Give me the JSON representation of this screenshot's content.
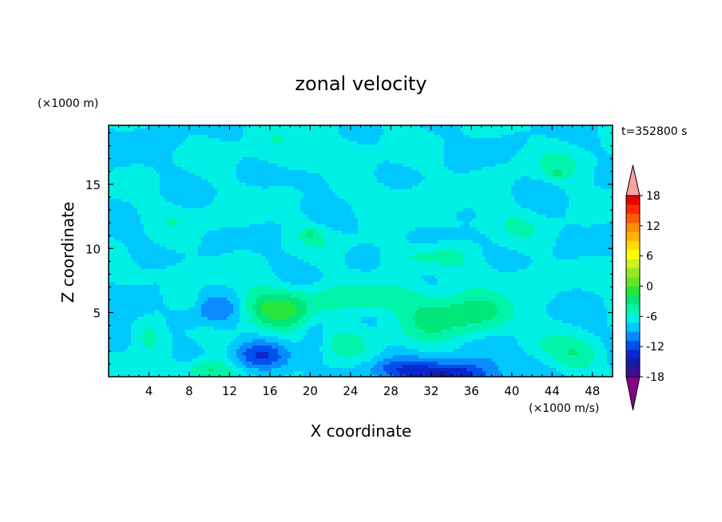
{
  "chart_data": {
    "type": "heatmap",
    "title": "zonal velocity",
    "xlabel": "X coordinate",
    "ylabel": "Z coordinate",
    "x_unit": "(×1000 m/s)",
    "y_unit": "(×1000 m)",
    "time_label": "t=352800 s",
    "xlim": [
      0,
      50
    ],
    "ylim": [
      0,
      19.6
    ],
    "xticks": [
      "4",
      "8",
      "12",
      "16",
      "20",
      "24",
      "28",
      "32",
      "36",
      "40",
      "44",
      "48"
    ],
    "yticks": [
      "5",
      "10",
      "15"
    ],
    "colorbar": {
      "range": [
        -21,
        21
      ],
      "step": 3,
      "ticks": [
        "18",
        "12",
        "6",
        "0",
        "-6",
        "-12",
        "-18"
      ],
      "colors": [
        "#8b008b",
        "#3c0e96",
        "#1a1aa0",
        "#0a28cd",
        "#0050f0",
        "#0a8cff",
        "#00c8ff",
        "#00f0e6",
        "#00f5aa",
        "#00e678",
        "#28e63c",
        "#64e61e",
        "#9be61e",
        "#d2f01e",
        "#ffff00",
        "#ffdc00",
        "#ffb400",
        "#ff8c00",
        "#ff5a00",
        "#ff2800",
        "#e60000",
        "#ffa0a0"
      ]
    },
    "field": {
      "background": 0,
      "blobs": [
        {
          "x": 16.5,
          "z": 5.3,
          "sx": 4.8,
          "sz": 1.6,
          "a": 9.5
        },
        {
          "x": 34.5,
          "z": 4.8,
          "sx": 5.2,
          "sz": 1.8,
          "a": 8.5
        },
        {
          "x": 26,
          "z": 6.2,
          "sx": 5.5,
          "sz": 1.0,
          "a": 4.5
        },
        {
          "x": 23,
          "z": 2.8,
          "sx": 3.5,
          "sz": 1.3,
          "a": 4.0
        },
        {
          "x": 4,
          "z": 3.2,
          "sx": 1.6,
          "sz": 1.4,
          "a": 5.0
        },
        {
          "x": 8,
          "z": 5.8,
          "sx": 1.4,
          "sz": 0.9,
          "a": 3.0
        },
        {
          "x": 9.8,
          "z": 0.5,
          "sx": 2.6,
          "sz": 0.9,
          "a": 7.5
        },
        {
          "x": 46.5,
          "z": 1.7,
          "sx": 3.0,
          "sz": 1.3,
          "a": 4.5
        },
        {
          "x": 42,
          "z": 2.6,
          "sx": 2.2,
          "sz": 0.9,
          "a": 2.5
        },
        {
          "x": 34,
          "z": 0.1,
          "sx": 4.5,
          "sz": 1.1,
          "a": -13
        },
        {
          "x": 28,
          "z": 0.6,
          "sx": 3.5,
          "sz": 0.8,
          "a": -5
        },
        {
          "x": 15,
          "z": 1.6,
          "sx": 2.8,
          "sz": 1.1,
          "a": -8
        },
        {
          "x": 11,
          "z": 5.2,
          "sx": 3.0,
          "sz": 1.3,
          "a": -6.5
        },
        {
          "x": 2.5,
          "z": 5.8,
          "sx": 2.4,
          "sz": 1.1,
          "a": -4.5
        },
        {
          "x": 20.5,
          "z": 3.2,
          "sx": 1.4,
          "sz": 2.0,
          "a": -4.0
        },
        {
          "x": 39,
          "z": 2.0,
          "sx": 3.0,
          "sz": 1.2,
          "a": -3.0
        },
        {
          "x": 8.5,
          "z": 2.0,
          "sx": 1.3,
          "sz": 0.9,
          "a": -2.5
        },
        {
          "x": 20,
          "z": 17.5,
          "sx": 8,
          "sz": 1.6,
          "a": 2.5
        },
        {
          "x": 28,
          "z": 14.2,
          "sx": 6,
          "sz": 1.1,
          "a": 2.2
        },
        {
          "x": 10,
          "z": 12.5,
          "sx": 6,
          "sz": 1.0,
          "a": 2.0
        },
        {
          "x": 38,
          "z": 11.8,
          "sx": 6,
          "sz": 1.2,
          "a": 2.2
        },
        {
          "x": 31,
          "z": 9.3,
          "sx": 4,
          "sz": 0.7,
          "a": 3.5
        },
        {
          "x": 45,
          "z": 16.5,
          "sx": 5,
          "sz": 1.2,
          "a": 2.3
        },
        {
          "x": 6,
          "z": 8.2,
          "sx": 5,
          "sz": 0.8,
          "a": 2.0
        },
        {
          "x": 24,
          "z": 10.5,
          "sx": 6,
          "sz": 0.8,
          "a": 1.4
        },
        {
          "x": 40,
          "z": 8.0,
          "sx": 5,
          "sz": 0.8,
          "a": 2.0
        },
        {
          "x": 20,
          "z": 11.2,
          "sx": 1.2,
          "sz": 0.4,
          "a": 4.5
        },
        {
          "x": 44.5,
          "z": 15.8,
          "sx": 0.9,
          "sz": 0.3,
          "a": 4.5
        },
        {
          "x": 20,
          "z": 15.5,
          "sx": 5,
          "sz": 0.9,
          "a": -1.5
        },
        {
          "x": 33,
          "z": 11.0,
          "sx": 3,
          "sz": 0.5,
          "a": -2.5
        },
        {
          "x": 5,
          "z": 18.8,
          "sx": 3,
          "sz": 0.8,
          "a": -1.6
        }
      ],
      "waves": [
        {
          "a": 1.0,
          "kx": 0.55,
          "kz": 0.9,
          "p": 0.0
        },
        {
          "a": 0.8,
          "kx": 0.35,
          "kz": -1.3,
          "p": 1.7
        },
        {
          "a": 0.6,
          "kx": 0.9,
          "kz": 0.5,
          "p": 3.1
        }
      ]
    }
  }
}
